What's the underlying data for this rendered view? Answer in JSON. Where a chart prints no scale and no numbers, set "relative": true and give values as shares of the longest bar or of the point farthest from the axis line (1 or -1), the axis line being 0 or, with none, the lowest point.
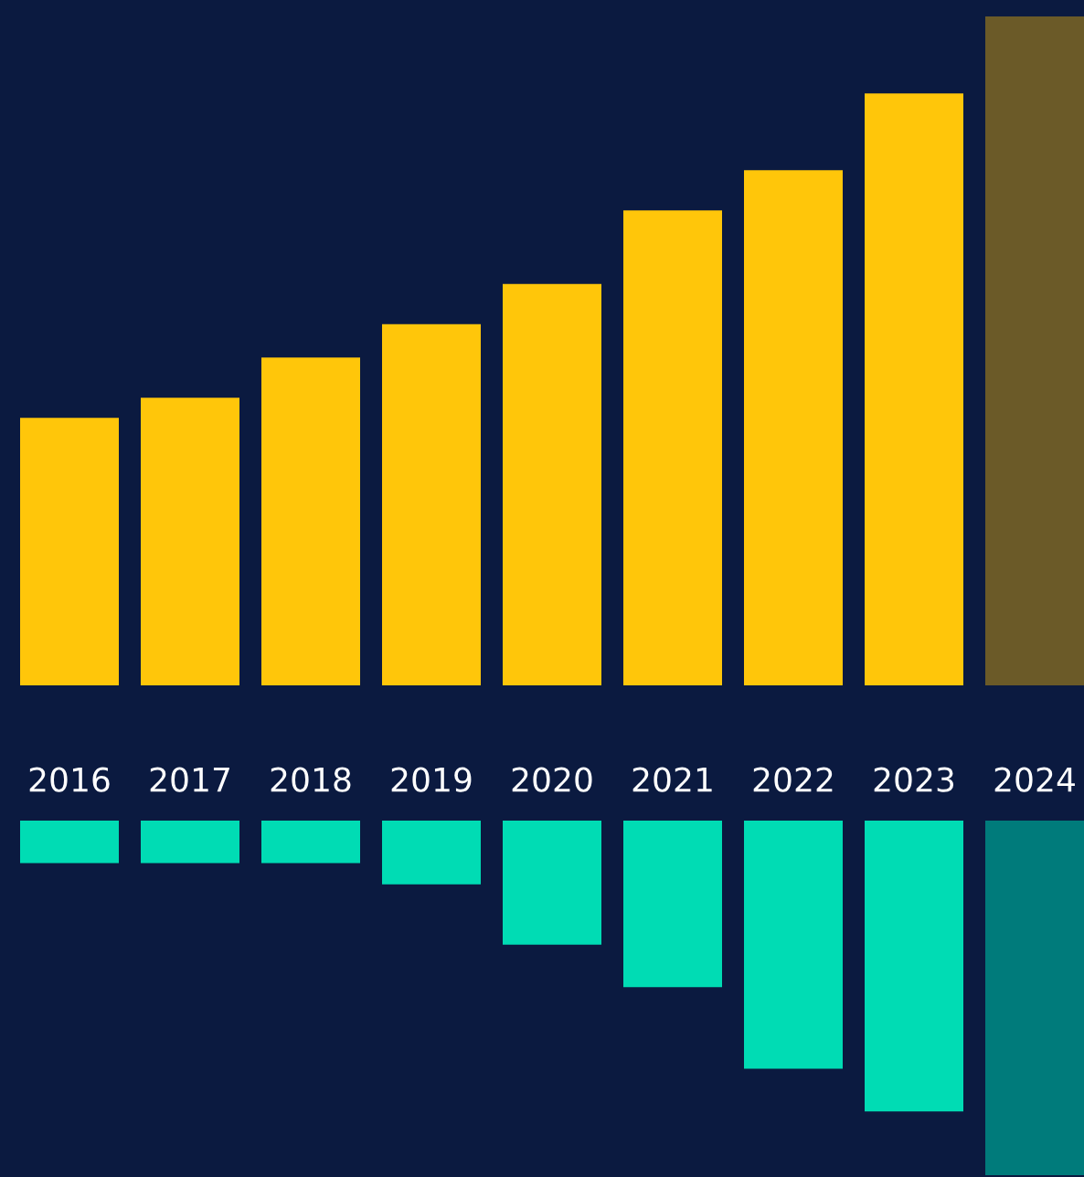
{
  "chart_data": [
    {
      "type": "bar",
      "relative": true,
      "categories": [
        "2016",
        "2017",
        "2018",
        "2019",
        "2020",
        "2021",
        "2022",
        "2023",
        "2024"
      ],
      "values": [
        0.4,
        0.43,
        0.49,
        0.54,
        0.6,
        0.71,
        0.77,
        0.885,
        1
      ],
      "colors": [
        "#ffc60a",
        "#ffc60a",
        "#ffc60a",
        "#ffc60a",
        "#ffc60a",
        "#ffc60a",
        "#ffc60a",
        "#ffc60a",
        "#6b5a28"
      ],
      "grid": false,
      "legend": false
    },
    {
      "type": "bar",
      "relative": true,
      "categories": [
        null,
        null,
        null,
        null,
        null,
        null,
        null,
        null,
        null
      ],
      "values": [
        -0.12,
        -0.12,
        -0.12,
        -0.18,
        -0.35,
        -0.47,
        -0.7,
        -0.82,
        -1
      ],
      "colors": [
        "#00dcb4",
        "#00dcb4",
        "#00dcb4",
        "#00dcb4",
        "#00dcb4",
        "#00dcb4",
        "#00dcb4",
        "#00dcb4",
        "#007b7b"
      ],
      "grid": false,
      "legend": false
    }
  ]
}
